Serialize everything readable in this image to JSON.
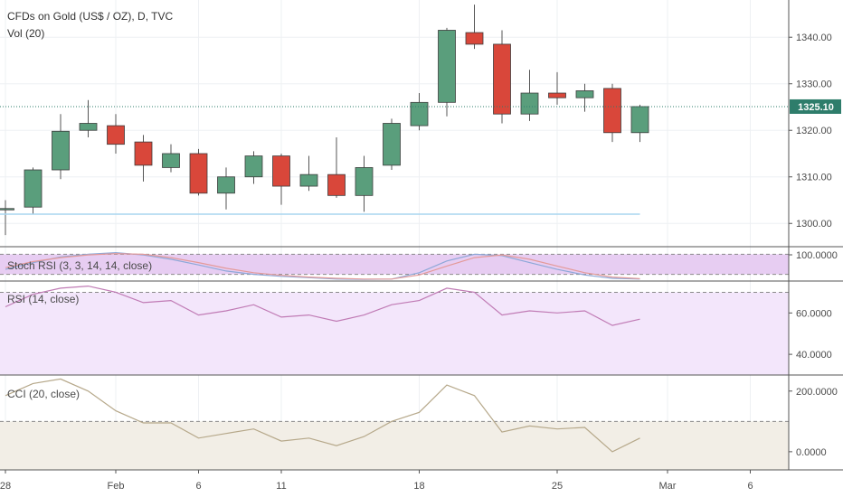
{
  "header": {
    "title": "CFDs on Gold (US$ / OZ), D, TVC",
    "vol_label": "Vol (20)"
  },
  "colors": {
    "up": "#5a9e7c",
    "down": "#d9473a",
    "wick": "#555555",
    "stoch_k": "#8ea8d8",
    "stoch_d": "#e49a9a",
    "rsi_line": "#c07bb5",
    "cci_line": "#b6a88a",
    "stoch_band": "#e7cdf2",
    "rsi_band": "#f3e6fb",
    "cci_band": "#f2eee6",
    "last_price": "#2e7d6b"
  },
  "chart_data": [
    {
      "type": "candlestick",
      "title": "CFDs on Gold (US$ / OZ), D, TVC",
      "ylim": [
        1295,
        1348
      ],
      "y_ticks": [
        1300,
        1310,
        1320,
        1330,
        1340
      ],
      "y_tick_labels": [
        "1300.00",
        "1310.00",
        "1320.00",
        "1330.00",
        "1340.00"
      ],
      "last_price": 1325.1,
      "last_price_label": "1325.10",
      "support_level": 1302.0,
      "x_ticks": [
        {
          "label": "28",
          "index": 0
        },
        {
          "label": "Feb",
          "index": 4
        },
        {
          "label": "6",
          "index": 7
        },
        {
          "label": "11",
          "index": 10
        },
        {
          "label": "18",
          "index": 15
        },
        {
          "label": "25",
          "index": 20
        },
        {
          "label": "Mar",
          "index": 24
        },
        {
          "label": "6",
          "index": 27
        }
      ],
      "candles": [
        {
          "o": 1303.0,
          "h": 1305.0,
          "l": 1297.5,
          "c": 1303.2
        },
        {
          "o": 1303.5,
          "h": 1312.0,
          "l": 1302.0,
          "c": 1311.5
        },
        {
          "o": 1311.5,
          "h": 1323.5,
          "l": 1309.5,
          "c": 1319.8
        },
        {
          "o": 1320.0,
          "h": 1326.5,
          "l": 1318.5,
          "c": 1321.5
        },
        {
          "o": 1321.0,
          "h": 1323.5,
          "l": 1315.0,
          "c": 1317.0
        },
        {
          "o": 1317.5,
          "h": 1319.0,
          "l": 1309.0,
          "c": 1312.5
        },
        {
          "o": 1312.0,
          "h": 1317.0,
          "l": 1311.0,
          "c": 1315.0
        },
        {
          "o": 1315.0,
          "h": 1316.0,
          "l": 1306.0,
          "c": 1306.5
        },
        {
          "o": 1306.5,
          "h": 1312.0,
          "l": 1303.0,
          "c": 1310.0
        },
        {
          "o": 1310.0,
          "h": 1315.5,
          "l": 1308.5,
          "c": 1314.5
        },
        {
          "o": 1314.5,
          "h": 1315.0,
          "l": 1304.0,
          "c": 1308.0
        },
        {
          "o": 1308.0,
          "h": 1314.5,
          "l": 1307.0,
          "c": 1310.5
        },
        {
          "o": 1310.5,
          "h": 1318.5,
          "l": 1305.5,
          "c": 1306.0
        },
        {
          "o": 1306.0,
          "h": 1314.5,
          "l": 1302.5,
          "c": 1312.0
        },
        {
          "o": 1312.5,
          "h": 1322.5,
          "l": 1311.5,
          "c": 1321.5
        },
        {
          "o": 1321.0,
          "h": 1328.0,
          "l": 1320.0,
          "c": 1326.0
        },
        {
          "o": 1326.0,
          "h": 1342.0,
          "l": 1323.0,
          "c": 1341.5
        },
        {
          "o": 1341.0,
          "h": 1347.0,
          "l": 1337.5,
          "c": 1338.5
        },
        {
          "o": 1338.5,
          "h": 1341.5,
          "l": 1321.5,
          "c": 1323.5
        },
        {
          "o": 1323.5,
          "h": 1333.0,
          "l": 1322.0,
          "c": 1328.0
        },
        {
          "o": 1328.0,
          "h": 1332.5,
          "l": 1325.5,
          "c": 1327.0
        },
        {
          "o": 1327.0,
          "h": 1330.0,
          "l": 1324.0,
          "c": 1328.5
        },
        {
          "o": 1329.0,
          "h": 1330.0,
          "l": 1317.5,
          "c": 1319.5
        },
        {
          "o": 1319.5,
          "h": 1325.5,
          "l": 1317.5,
          "c": 1325.1
        }
      ]
    },
    {
      "type": "line",
      "title": "Stoch RSI (3, 3, 14, 14, close)",
      "ylim": [
        0,
        100
      ],
      "band": [
        20,
        80
      ],
      "y_ticks": [
        100
      ],
      "y_tick_labels": [
        "100.0000"
      ],
      "series": [
        {
          "values": [
            35,
            55,
            72,
            80,
            85,
            78,
            65,
            48,
            30,
            20,
            14,
            10,
            6,
            5,
            6,
            25,
            60,
            80,
            76,
            55,
            35,
            18,
            8,
            6
          ]
        },
        {
          "values": [
            40,
            58,
            70,
            78,
            82,
            80,
            70,
            55,
            38,
            25,
            17,
            12,
            8,
            6,
            6,
            18,
            45,
            70,
            78,
            65,
            45,
            25,
            12,
            7
          ]
        }
      ]
    },
    {
      "type": "line",
      "title": "RSI (14, close)",
      "ylim": [
        30,
        75
      ],
      "band": [
        30,
        70
      ],
      "y_ticks": [
        40,
        60
      ],
      "y_tick_labels": [
        "40.0000",
        "60.0000"
      ],
      "series": [
        {
          "values": [
            63,
            69,
            72,
            73,
            70,
            65,
            66,
            59,
            61,
            64,
            58,
            59,
            56,
            59,
            64,
            66,
            72,
            70,
            59,
            61,
            60,
            61,
            54,
            57
          ]
        }
      ]
    },
    {
      "type": "line",
      "title": "CCI (20, close)",
      "ylim": [
        -60,
        250
      ],
      "band": [
        -100,
        100
      ],
      "y_ticks": [
        0,
        200
      ],
      "y_tick_labels": [
        "0.0000",
        "200.0000"
      ],
      "series": [
        {
          "values": [
            185,
            225,
            240,
            200,
            135,
            95,
            95,
            45,
            60,
            75,
            35,
            45,
            20,
            50,
            100,
            130,
            220,
            185,
            65,
            85,
            75,
            80,
            0,
            45
          ]
        }
      ]
    }
  ]
}
